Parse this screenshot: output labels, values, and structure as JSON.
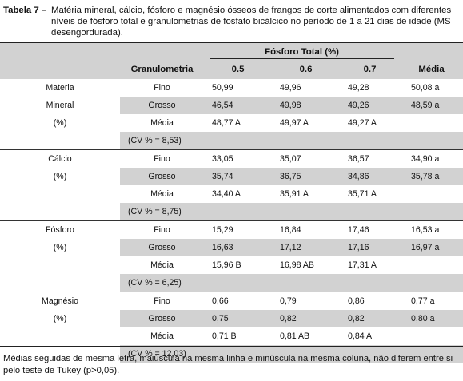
{
  "caption": {
    "label": "Tabela 7 –",
    "text": "Matéria mineral, cálcio, fósforo e magnésio ósseos de frangos de corte alimentados com diferentes níveis de fósforo total e granulometrias de fosfato bicálcico no período de 1 a 21 dias de idade (MS desengordurada)."
  },
  "header": {
    "group": "Fósforo Total (%)",
    "granulometria": "Granulometria",
    "levels": [
      "0.5",
      "0.6",
      "0.7"
    ],
    "media": "Média"
  },
  "blocks": [
    {
      "param": [
        "Materia",
        "Mineral",
        "(%)"
      ],
      "rows": [
        {
          "gran": "Fino",
          "v": [
            "50,99",
            "49,96",
            "49,28"
          ],
          "m": "50,08 a"
        },
        {
          "gran": "Grosso",
          "v": [
            "46,54",
            "49,98",
            "49,26"
          ],
          "m": "48,59 a"
        },
        {
          "gran": "Média",
          "v": [
            "48,77 A",
            "49,97 A",
            "49,27 A"
          ],
          "m": ""
        }
      ],
      "cv": "(CV % = 8,53)"
    },
    {
      "param": [
        "Cálcio",
        "(%)"
      ],
      "rows": [
        {
          "gran": "Fino",
          "v": [
            "33,05",
            "35,07",
            "36,57"
          ],
          "m": "34,90 a"
        },
        {
          "gran": "Grosso",
          "v": [
            "35,74",
            "36,75",
            "34,86"
          ],
          "m": "35,78 a"
        },
        {
          "gran": "Média",
          "v": [
            "34,40 A",
            "35,91 A",
            "35,71 A"
          ],
          "m": ""
        }
      ],
      "cv": "(CV % = 8,75)"
    },
    {
      "param": [
        "Fósforo",
        "(%)"
      ],
      "rows": [
        {
          "gran": "Fino",
          "v": [
            "15,29",
            "16,84",
            "17,46"
          ],
          "m": "16,53 a"
        },
        {
          "gran": "Grosso",
          "v": [
            "16,63",
            "17,12",
            "17,16"
          ],
          "m": "16,97 a"
        },
        {
          "gran": "Média",
          "v": [
            "15,96 B",
            "16,98 AB",
            "17,31 A"
          ],
          "m": ""
        }
      ],
      "cv": "(CV % = 6,25)"
    },
    {
      "param": [
        "Magnésio",
        "(%)"
      ],
      "rows": [
        {
          "gran": "Fino",
          "v": [
            "0,66",
            "0,79",
            "0,86"
          ],
          "m": "0,77 a"
        },
        {
          "gran": "Grosso",
          "v": [
            "0,75",
            "0,82",
            "0,82"
          ],
          "m": "0,80 a"
        },
        {
          "gran": "Média",
          "v": [
            "0,71 B",
            "0,81 AB",
            "0,84 A"
          ],
          "m": ""
        }
      ],
      "cv": "(CV % = 12,03)"
    }
  ],
  "footnote": "Médias seguidas de mesma letra, maiúscula na mesma linha e minúscula na mesma coluna, não diferem entre si pelo teste de Tukey (p>0,05)."
}
